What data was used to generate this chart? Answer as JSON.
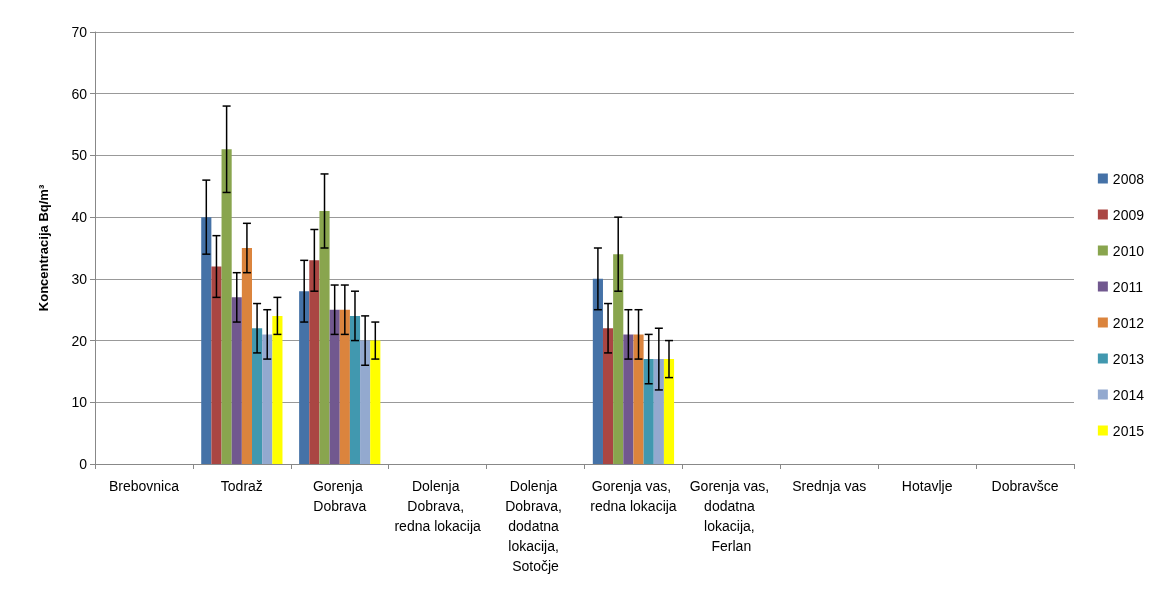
{
  "chart_data": {
    "type": "bar",
    "ylabel": "Koncentracija Bq/m³",
    "categories": [
      "Brebovnica",
      "Todraž",
      "Gorenja Dobrava",
      "Dolenja Dobrava, redna lokacija",
      "Dolenja Dobrava, dodatna lokacija, Sotočje",
      "Gorenja vas, redna lokacija",
      "Gorenja vas, dodatna lokacija, Ferlan",
      "Srednja vas",
      "Hotavlje",
      "Dobravšce"
    ],
    "series": [
      {
        "name": "2008",
        "color": "#4572a7",
        "values": [
          null,
          40,
          28,
          null,
          null,
          30,
          null,
          null,
          null,
          null
        ],
        "errors": [
          null,
          6,
          5,
          null,
          null,
          5,
          null,
          null,
          null,
          null
        ]
      },
      {
        "name": "2009",
        "color": "#aa4643",
        "values": [
          null,
          32,
          33,
          null,
          null,
          22,
          null,
          null,
          null,
          null
        ],
        "errors": [
          null,
          5,
          5,
          null,
          null,
          4,
          null,
          null,
          null,
          null
        ]
      },
      {
        "name": "2010",
        "color": "#89a54e",
        "values": [
          null,
          51,
          41,
          null,
          null,
          34,
          null,
          null,
          null,
          null
        ],
        "errors": [
          null,
          7,
          6,
          null,
          null,
          6,
          null,
          null,
          null,
          null
        ]
      },
      {
        "name": "2011",
        "color": "#71588f",
        "values": [
          null,
          27,
          25,
          null,
          null,
          21,
          null,
          null,
          null,
          null
        ],
        "errors": [
          null,
          4,
          4,
          null,
          null,
          4,
          null,
          null,
          null,
          null
        ]
      },
      {
        "name": "2012",
        "color": "#db843d",
        "values": [
          null,
          35,
          25,
          null,
          null,
          21,
          null,
          null,
          null,
          null
        ],
        "errors": [
          null,
          4,
          4,
          null,
          null,
          4,
          null,
          null,
          null,
          null
        ]
      },
      {
        "name": "2013",
        "color": "#4198af",
        "values": [
          null,
          22,
          24,
          null,
          null,
          17,
          null,
          null,
          null,
          null
        ],
        "errors": [
          null,
          4,
          4,
          null,
          null,
          4,
          null,
          null,
          null,
          null
        ]
      },
      {
        "name": "2014",
        "color": "#93a9cf",
        "values": [
          null,
          21,
          20,
          null,
          null,
          17,
          null,
          null,
          null,
          null
        ],
        "errors": [
          null,
          4,
          4,
          null,
          null,
          5,
          null,
          null,
          null,
          null
        ]
      },
      {
        "name": "2015",
        "color": "#ffff00",
        "values": [
          null,
          24,
          20,
          null,
          null,
          17,
          null,
          null,
          null,
          null
        ],
        "errors": [
          null,
          3,
          3,
          null,
          null,
          3,
          null,
          null,
          null,
          null
        ]
      }
    ],
    "ylim": [
      0,
      70
    ],
    "yticks": [
      0,
      10,
      20,
      30,
      40,
      50,
      60,
      70
    ],
    "grid": "y",
    "legend": "right"
  }
}
